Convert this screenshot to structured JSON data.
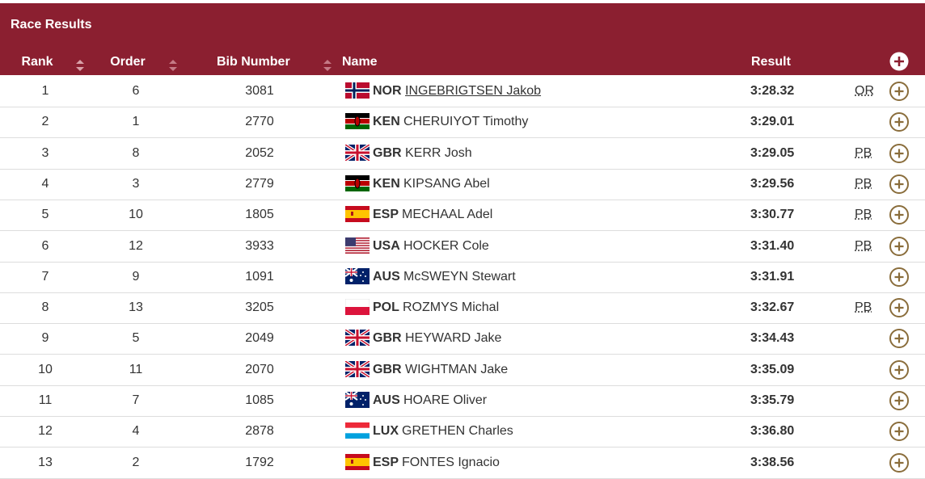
{
  "header": {
    "title": "Race Results"
  },
  "table": {
    "columns": {
      "rank": "Rank",
      "order": "Order",
      "bib": "Bib Number",
      "name": "Name",
      "result": "Result"
    },
    "rows": [
      {
        "rank": 1,
        "order": 6,
        "bib": 3081,
        "country": "NOR",
        "name": "INGEBRIGTSEN Jakob",
        "result": "3:28.32",
        "note": "OR"
      },
      {
        "rank": 2,
        "order": 1,
        "bib": 2770,
        "country": "KEN",
        "name": "CHERUIYOT Timothy",
        "result": "3:29.01"
      },
      {
        "rank": 3,
        "order": 8,
        "bib": 2052,
        "country": "GBR",
        "name": "KERR Josh",
        "result": "3:29.05",
        "note": "PB"
      },
      {
        "rank": 4,
        "order": 3,
        "bib": 2779,
        "country": "KEN",
        "name": "KIPSANG Abel",
        "result": "3:29.56",
        "note": "PB"
      },
      {
        "rank": 5,
        "order": 10,
        "bib": 1805,
        "country": "ESP",
        "name": "MECHAAL Adel",
        "result": "3:30.77",
        "note": "PB"
      },
      {
        "rank": 6,
        "order": 12,
        "bib": 3933,
        "country": "USA",
        "name": "HOCKER Cole",
        "result": "3:31.40",
        "note": "PB"
      },
      {
        "rank": 7,
        "order": 9,
        "bib": 1091,
        "country": "AUS",
        "name": "McSWEYN Stewart",
        "result": "3:31.91"
      },
      {
        "rank": 8,
        "order": 13,
        "bib": 3205,
        "country": "POL",
        "name": "ROZMYS Michal",
        "result": "3:32.67",
        "note": "PB"
      },
      {
        "rank": 9,
        "order": 5,
        "bib": 2049,
        "country": "GBR",
        "name": "HEYWARD Jake",
        "result": "3:34.43"
      },
      {
        "rank": 10,
        "order": 11,
        "bib": 2070,
        "country": "GBR",
        "name": "WIGHTMAN Jake",
        "result": "3:35.09"
      },
      {
        "rank": 11,
        "order": 7,
        "bib": 1085,
        "country": "AUS",
        "name": "HOARE Oliver",
        "result": "3:35.79"
      },
      {
        "rank": 12,
        "order": 4,
        "bib": 2878,
        "country": "LUX",
        "name": "GRETHEN Charles",
        "result": "3:36.80"
      },
      {
        "rank": 13,
        "order": 2,
        "bib": 1792,
        "country": "ESP",
        "name": "FONTES Ignacio",
        "result": "3:38.56"
      }
    ]
  }
}
